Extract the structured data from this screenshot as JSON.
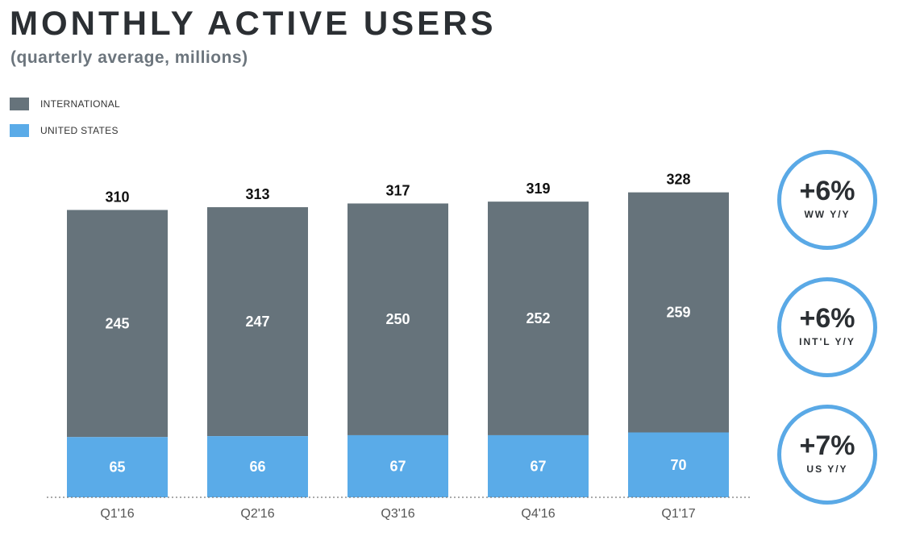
{
  "header": {
    "title": "MONTHLY ACTIVE USERS",
    "subtitle": "(quarterly average, millions)"
  },
  "colors": {
    "international": "#66737b",
    "united_states": "#5aabe8",
    "ring": "#5aa9e6"
  },
  "legend": [
    {
      "label": "INTERNATIONAL",
      "color": "#66737b"
    },
    {
      "label": "UNITED STATES",
      "color": "#5aabe8"
    }
  ],
  "chart_data": {
    "type": "bar",
    "stacked": true,
    "categories": [
      "Q1'16",
      "Q2'16",
      "Q3'16",
      "Q4'16",
      "Q1'17"
    ],
    "series": [
      {
        "name": "UNITED STATES",
        "values": [
          65,
          66,
          67,
          67,
          70
        ]
      },
      {
        "name": "INTERNATIONAL",
        "values": [
          245,
          247,
          250,
          252,
          259
        ]
      }
    ],
    "totals": [
      310,
      313,
      317,
      319,
      328
    ],
    "ylim": [
      0,
      340
    ],
    "grid": false,
    "legend_position": "top-left"
  },
  "kpis": [
    {
      "value": "+6%",
      "label": "WW Y/Y"
    },
    {
      "value": "+6%",
      "label": "INT'L Y/Y"
    },
    {
      "value": "+7%",
      "label": "US Y/Y"
    }
  ]
}
